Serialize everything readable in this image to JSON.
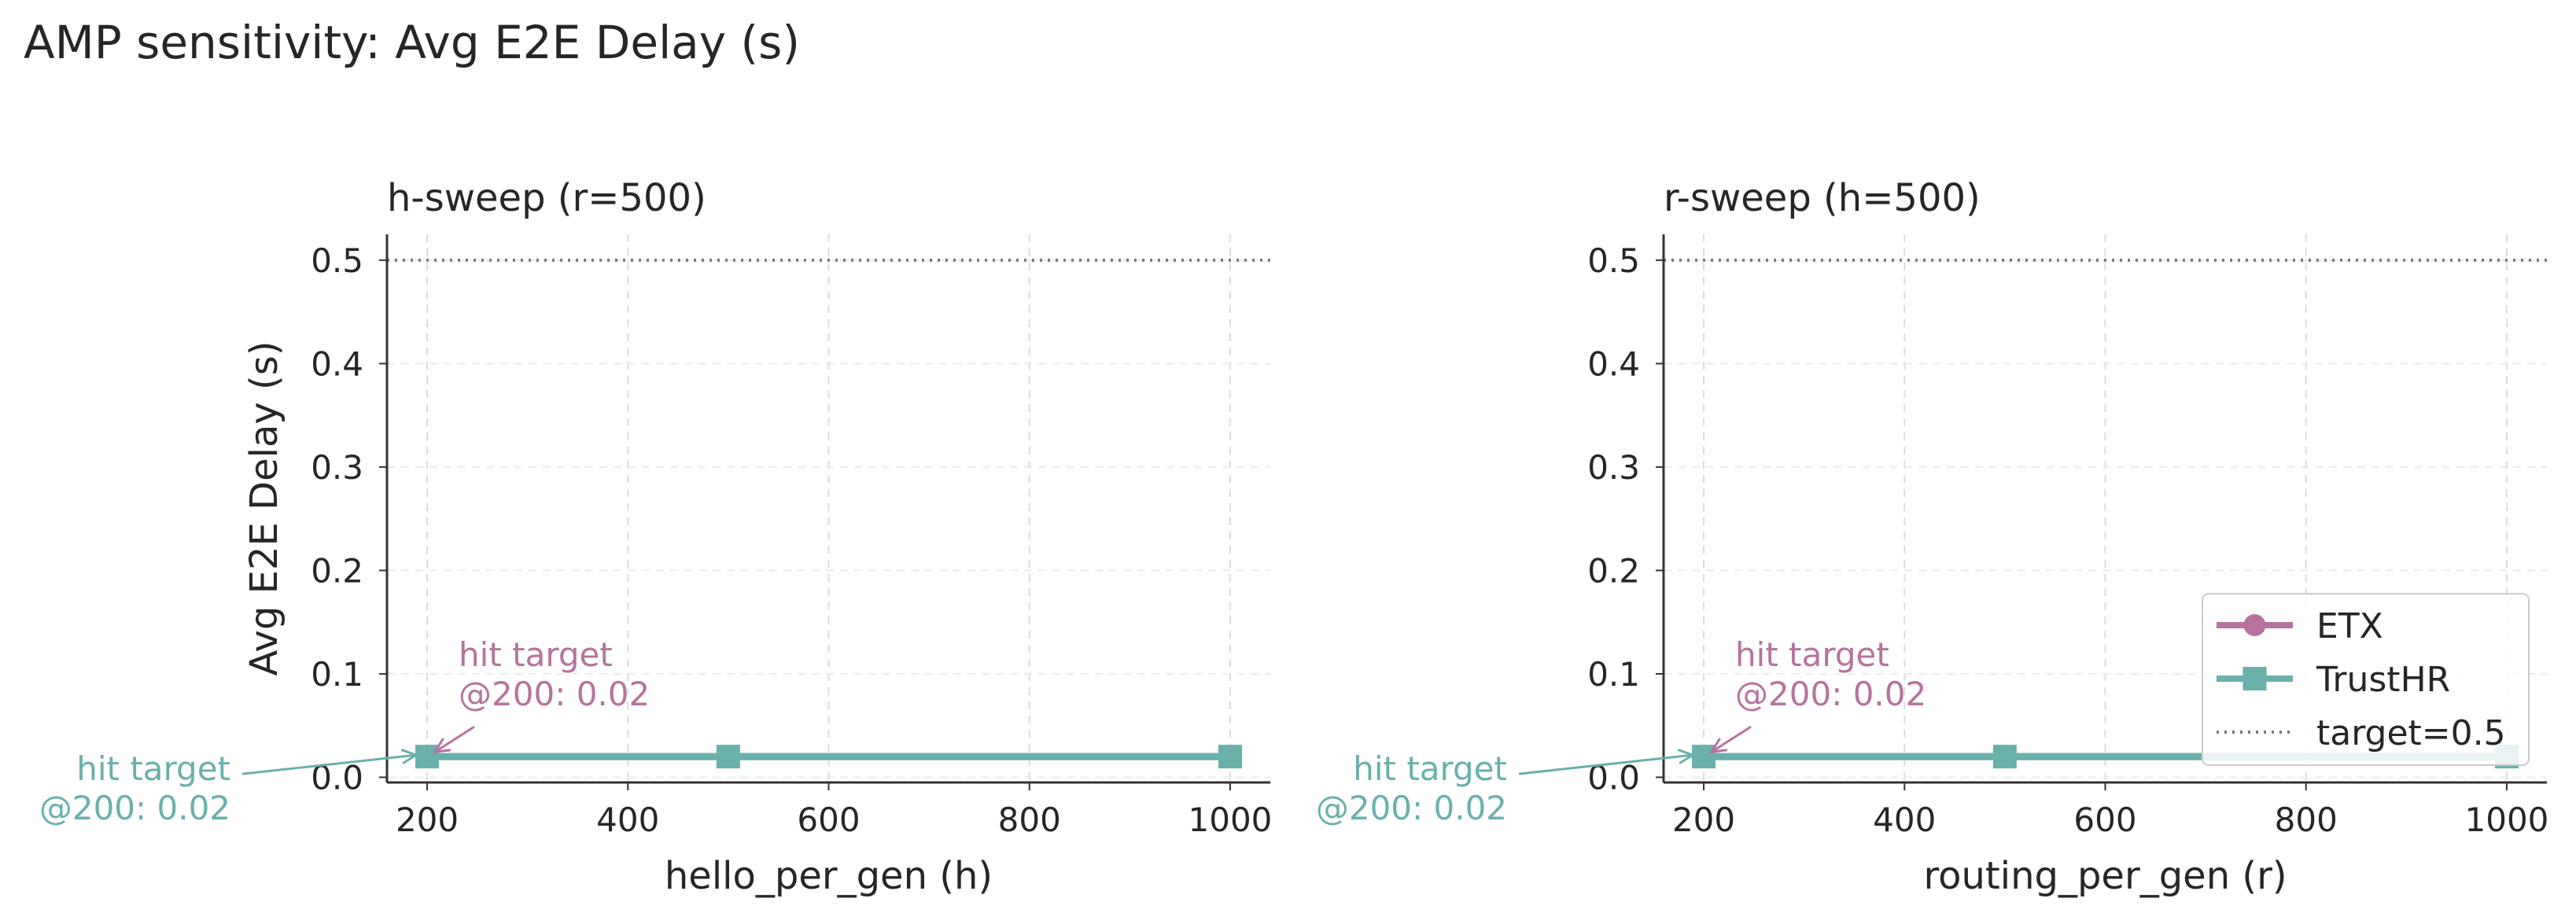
{
  "figure": {
    "title": "AMP sensitivity: Avg E2E Delay (s)"
  },
  "colors": {
    "ETX": "#b5739d",
    "TrustHR": "#6ab0ab",
    "target": "#7a7a7a"
  },
  "legend": {
    "placement": "lower-right",
    "entries": [
      {
        "key": "ETX",
        "label": "ETX",
        "marker": "circle",
        "style": "solid"
      },
      {
        "key": "TrustHR",
        "label": "TrustHR",
        "marker": "square",
        "style": "solid"
      },
      {
        "key": "target",
        "label": "target=0.5",
        "marker": "none",
        "style": "dotted"
      }
    ]
  },
  "chart_data": [
    {
      "type": "line",
      "title": "h-sweep (r=500)",
      "xlabel": "hello_per_gen (h)",
      "ylabel": "Avg E2E Delay (s)",
      "xlim": [
        160,
        1040
      ],
      "ylim": [
        -0.005,
        0.525
      ],
      "xticks": [
        200,
        400,
        600,
        800,
        1000
      ],
      "yticks": [
        0.0,
        0.1,
        0.2,
        0.3,
        0.4,
        0.5
      ],
      "grid": true,
      "x": [
        200,
        500,
        1000
      ],
      "series": [
        {
          "name": "ETX",
          "values": [
            0.02,
            0.02,
            0.02
          ]
        },
        {
          "name": "TrustHR",
          "values": [
            0.02,
            0.02,
            0.02
          ]
        }
      ],
      "reference_lines": [
        {
          "y": 0.5,
          "label": "target=0.5"
        }
      ],
      "annotations": [
        {
          "series": "ETX",
          "x": 200,
          "y": 0.02,
          "lines": [
            "hit target",
            "@200: 0.02"
          ]
        },
        {
          "series": "TrustHR",
          "x": 200,
          "y": 0.02,
          "lines": [
            "hit target",
            "@200: 0.02"
          ]
        }
      ]
    },
    {
      "type": "line",
      "title": "r-sweep (h=500)",
      "xlabel": "routing_per_gen (r)",
      "ylabel": "",
      "xlim": [
        160,
        1040
      ],
      "ylim": [
        -0.005,
        0.525
      ],
      "xticks": [
        200,
        400,
        600,
        800,
        1000
      ],
      "yticks": [
        0.0,
        0.1,
        0.2,
        0.3,
        0.4,
        0.5
      ],
      "grid": true,
      "x": [
        200,
        500,
        1000
      ],
      "series": [
        {
          "name": "ETX",
          "values": [
            0.02,
            0.02,
            0.02
          ]
        },
        {
          "name": "TrustHR",
          "values": [
            0.02,
            0.02,
            0.02
          ]
        }
      ],
      "reference_lines": [
        {
          "y": 0.5,
          "label": "target=0.5"
        }
      ],
      "annotations": [
        {
          "series": "ETX",
          "x": 200,
          "y": 0.02,
          "lines": [
            "hit target",
            "@200: 0.02"
          ]
        },
        {
          "series": "TrustHR",
          "x": 200,
          "y": 0.02,
          "lines": [
            "hit target",
            "@200: 0.02"
          ]
        }
      ]
    }
  ]
}
